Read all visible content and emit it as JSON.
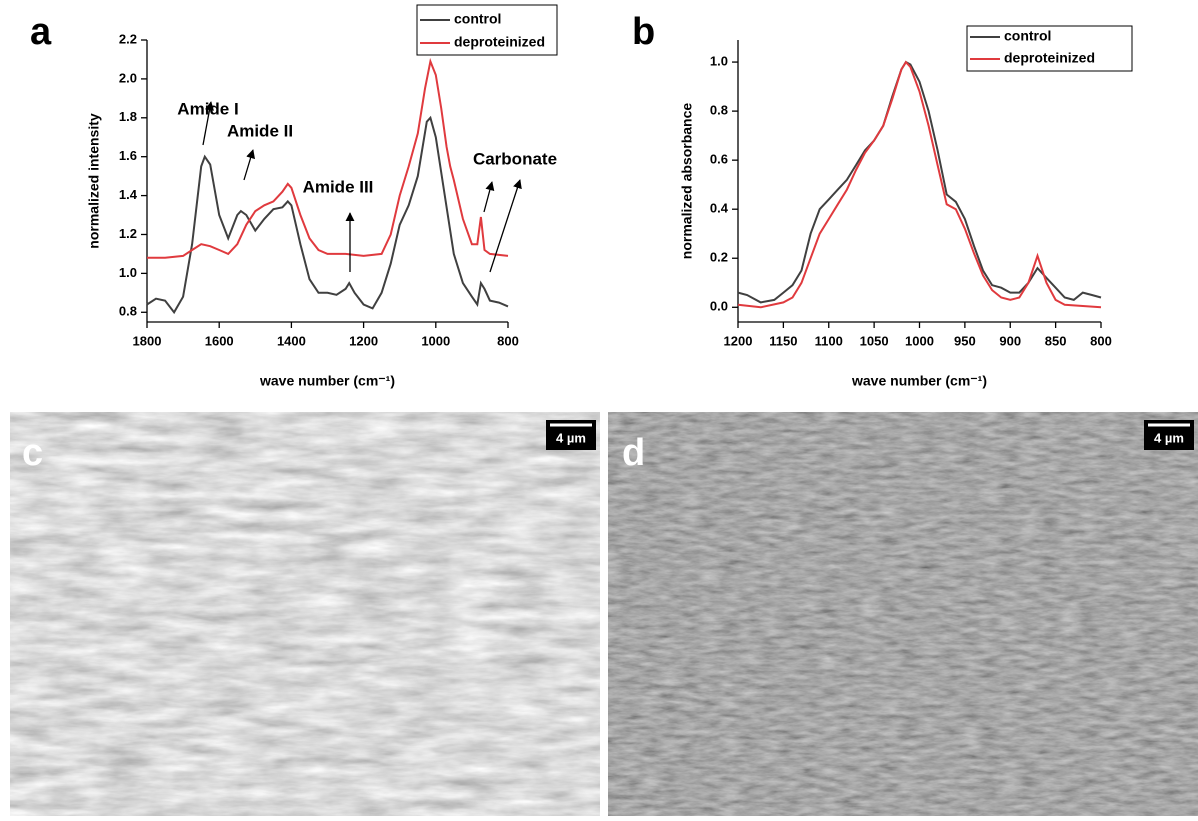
{
  "chart_data": [
    {
      "type": "line",
      "panel_label": "a",
      "xlabel": "wave number (cm⁻¹)",
      "ylabel": "normalized intensity",
      "xlim": [
        1800,
        800
      ],
      "xticks": [
        1800,
        1600,
        1400,
        1200,
        {
          "value": 1000,
          "label": "1000"
        },
        800
      ],
      "ylim": [
        0.75,
        2.2
      ],
      "yticks": [
        0.8,
        {
          "value": 1,
          "label": "1.0"
        },
        1.2,
        1.4,
        1.6,
        1.8,
        {
          "value": 2,
          "label": "2.0"
        },
        2.2
      ],
      "legend": "upper right",
      "annotations": [
        "Amide I",
        "Amide II",
        "Amide III",
        "Carbonate"
      ],
      "series": [
        {
          "name": "control",
          "color": "#404040",
          "x": [
            1800,
            1775,
            1750,
            1725,
            1700,
            1675,
            1650,
            1640,
            1625,
            1600,
            1575,
            1550,
            1540,
            1525,
            1500,
            1475,
            1450,
            1425,
            1410,
            1400,
            1375,
            1350,
            1325,
            1300,
            1275,
            1250,
            1240,
            1225,
            1200,
            1175,
            1150,
            1125,
            1100,
            1075,
            1050,
            1025,
            1015,
            1000,
            975,
            950,
            925,
            900,
            885,
            875,
            865,
            850,
            825,
            800
          ],
          "values": [
            0.84,
            0.87,
            0.86,
            0.8,
            0.88,
            1.15,
            1.55,
            1.6,
            1.56,
            1.3,
            1.18,
            1.3,
            1.32,
            1.3,
            1.22,
            1.28,
            1.33,
            1.34,
            1.37,
            1.35,
            1.15,
            0.97,
            0.9,
            0.9,
            0.89,
            0.92,
            0.95,
            0.9,
            0.84,
            0.82,
            0.9,
            1.05,
            1.25,
            1.35,
            1.5,
            1.78,
            1.8,
            1.7,
            1.4,
            1.1,
            0.95,
            0.88,
            0.84,
            0.95,
            0.92,
            0.86,
            0.85,
            0.83
          ]
        },
        {
          "name": "deproteinized",
          "color": "#e03a3e",
          "x": [
            1800,
            1750,
            1700,
            1675,
            1650,
            1625,
            1600,
            1575,
            1550,
            1525,
            1500,
            1475,
            1450,
            1425,
            1410,
            1400,
            1375,
            1350,
            1325,
            1300,
            1250,
            1200,
            1150,
            1125,
            1100,
            1075,
            1050,
            1030,
            1015,
            1000,
            985,
            970,
            960,
            950,
            925,
            900,
            885,
            875,
            865,
            850,
            800
          ],
          "values": [
            1.08,
            1.08,
            1.09,
            1.12,
            1.15,
            1.14,
            1.12,
            1.1,
            1.15,
            1.25,
            1.32,
            1.35,
            1.37,
            1.42,
            1.46,
            1.44,
            1.3,
            1.18,
            1.12,
            1.1,
            1.1,
            1.09,
            1.1,
            1.2,
            1.4,
            1.55,
            1.72,
            1.95,
            2.09,
            2.02,
            1.85,
            1.65,
            1.55,
            1.48,
            1.28,
            1.15,
            1.15,
            1.29,
            1.12,
            1.1,
            1.09
          ]
        }
      ]
    },
    {
      "type": "line",
      "panel_label": "b",
      "xlabel": "wave number (cm⁻¹)",
      "ylabel": "normalized absorbance",
      "xlim": [
        1200,
        800
      ],
      "xticks": [
        1200,
        1150,
        1100,
        1050,
        1000,
        950,
        900,
        850,
        800
      ],
      "ylim": [
        -0.06,
        1.09
      ],
      "yticks": [
        {
          "value": 0,
          "label": "0.0"
        },
        0.2,
        0.4,
        0.6,
        0.8,
        {
          "value": 1,
          "label": "1.0"
        }
      ],
      "legend": "upper right",
      "series": [
        {
          "name": "control",
          "color": "#404040",
          "x": [
            1200,
            1190,
            1175,
            1160,
            1150,
            1140,
            1130,
            1120,
            1110,
            1100,
            1090,
            1080,
            1070,
            1060,
            1050,
            1040,
            1030,
            1020,
            1015,
            1010,
            1000,
            990,
            980,
            970,
            960,
            950,
            940,
            930,
            920,
            910,
            900,
            890,
            880,
            870,
            860,
            850,
            840,
            830,
            820,
            810,
            800
          ],
          "values": [
            0.06,
            0.05,
            0.02,
            0.03,
            0.06,
            0.09,
            0.15,
            0.3,
            0.4,
            0.44,
            0.48,
            0.52,
            0.58,
            0.64,
            0.68,
            0.74,
            0.86,
            0.97,
            1,
            0.99,
            0.92,
            0.8,
            0.64,
            0.46,
            0.43,
            0.36,
            0.25,
            0.15,
            0.09,
            0.08,
            0.06,
            0.06,
            0.1,
            0.16,
            0.12,
            0.08,
            0.04,
            0.03,
            0.06,
            0.05,
            0.04
          ]
        },
        {
          "name": "deproteinized",
          "color": "#e03a3e",
          "x": [
            1200,
            1175,
            1150,
            1140,
            1130,
            1120,
            1110,
            1100,
            1090,
            1080,
            1070,
            1060,
            1050,
            1040,
            1030,
            1020,
            1015,
            1010,
            1000,
            990,
            980,
            970,
            960,
            950,
            940,
            930,
            920,
            910,
            900,
            890,
            880,
            870,
            860,
            850,
            840,
            800
          ],
          "values": [
            0.01,
            0,
            0.02,
            0.04,
            0.1,
            0.2,
            0.3,
            0.36,
            0.42,
            0.48,
            0.56,
            0.63,
            0.68,
            0.74,
            0.85,
            0.97,
            1,
            0.98,
            0.88,
            0.74,
            0.58,
            0.42,
            0.4,
            0.32,
            0.22,
            0.13,
            0.07,
            0.04,
            0.03,
            0.04,
            0.1,
            0.21,
            0.1,
            0.03,
            0.01,
            0
          ]
        }
      ]
    }
  ],
  "images": [
    {
      "panel_label": "c",
      "scale_bar": "4 µm"
    },
    {
      "panel_label": "d",
      "scale_bar": "4 µm"
    }
  ]
}
